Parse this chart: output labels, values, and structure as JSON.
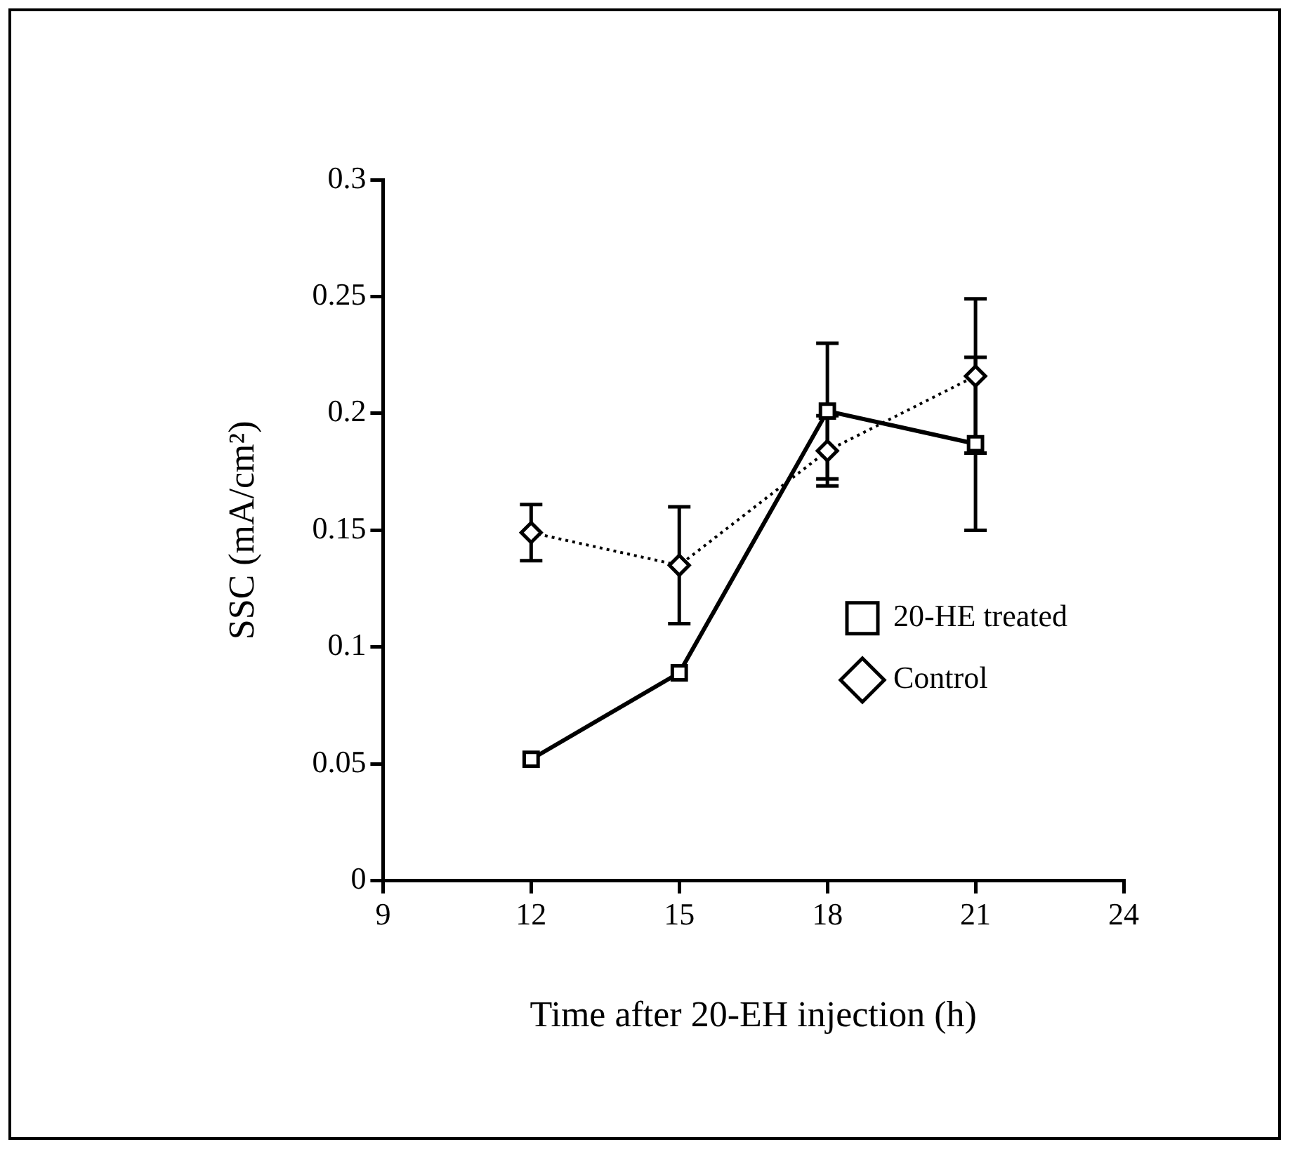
{
  "chart_data": {
    "type": "line",
    "xlabel": "Time after 20-EH injection (h)",
    "ylabel": "SSC (mA/cm²)",
    "x": [
      12,
      15,
      18,
      21
    ],
    "series": [
      {
        "name": "20-HE treated",
        "color": "#000000",
        "values": [
          0.052,
          0.089,
          0.201,
          0.187
        ],
        "errors": [
          null,
          null,
          0.029,
          0.037
        ],
        "marker": "square",
        "line_style": "solid"
      },
      {
        "name": "Control",
        "color": "#000000",
        "values": [
          0.149,
          0.135,
          0.184,
          0.216
        ],
        "errors": [
          0.012,
          0.025,
          0.015,
          0.033
        ],
        "marker": "diamond",
        "line_style": "dotted"
      }
    ],
    "xlim": [
      9,
      24
    ],
    "xticks": [
      9,
      12,
      15,
      18,
      21,
      24
    ],
    "ylim": [
      0,
      0.3
    ],
    "yticks": [
      0,
      0.05,
      0.1,
      0.15,
      0.2,
      0.25,
      0.3
    ],
    "grid": false,
    "legend": "bottom right"
  }
}
